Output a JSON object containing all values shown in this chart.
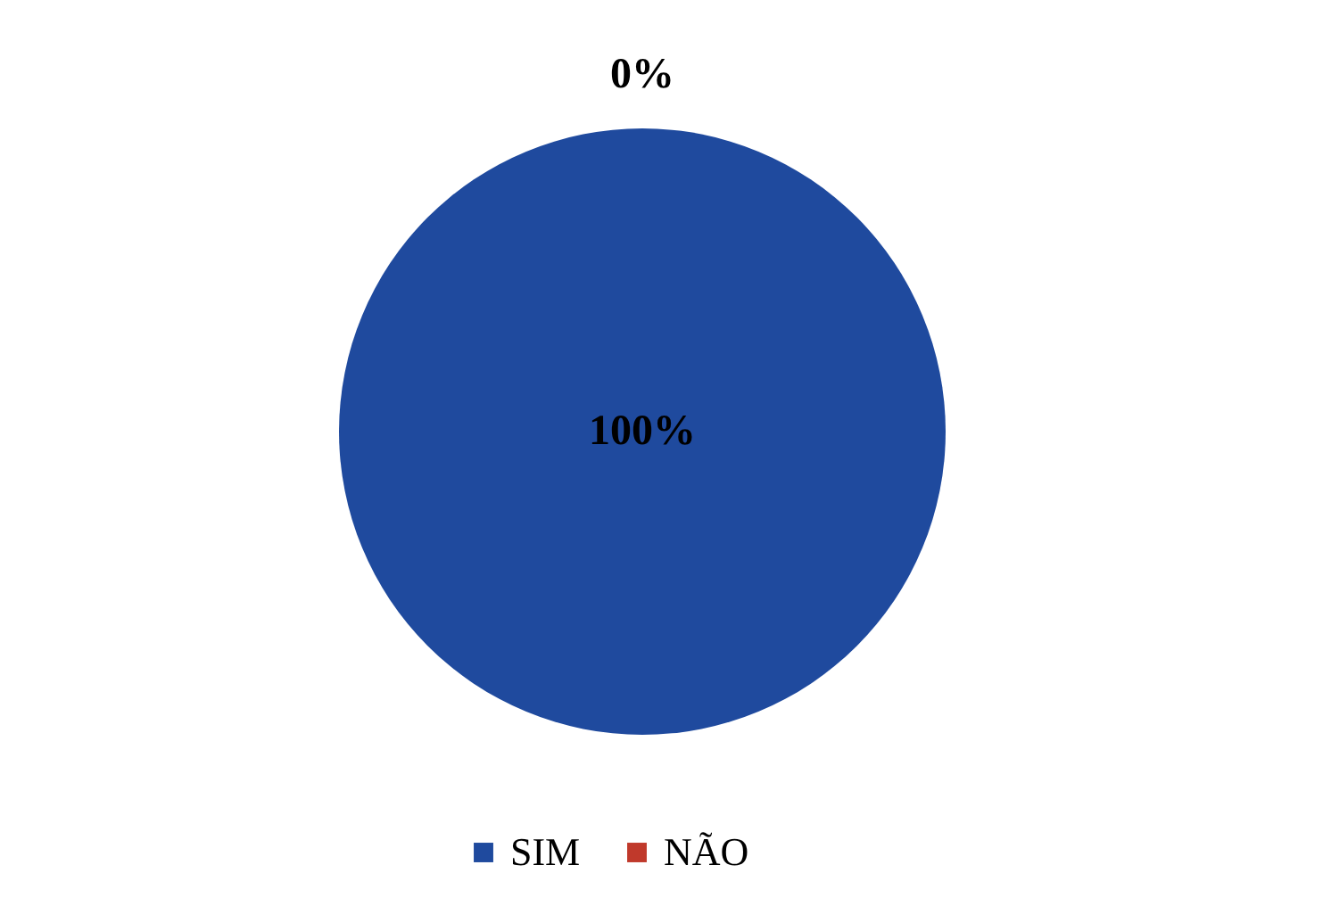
{
  "chart_data": {
    "type": "pie",
    "categories": [
      "SIM",
      "NÃO"
    ],
    "values": [
      100,
      0
    ],
    "colors": [
      "#1f4a9e",
      "#c0392b"
    ],
    "value_labels": [
      "100%",
      "0%"
    ],
    "legend": "bottom"
  }
}
